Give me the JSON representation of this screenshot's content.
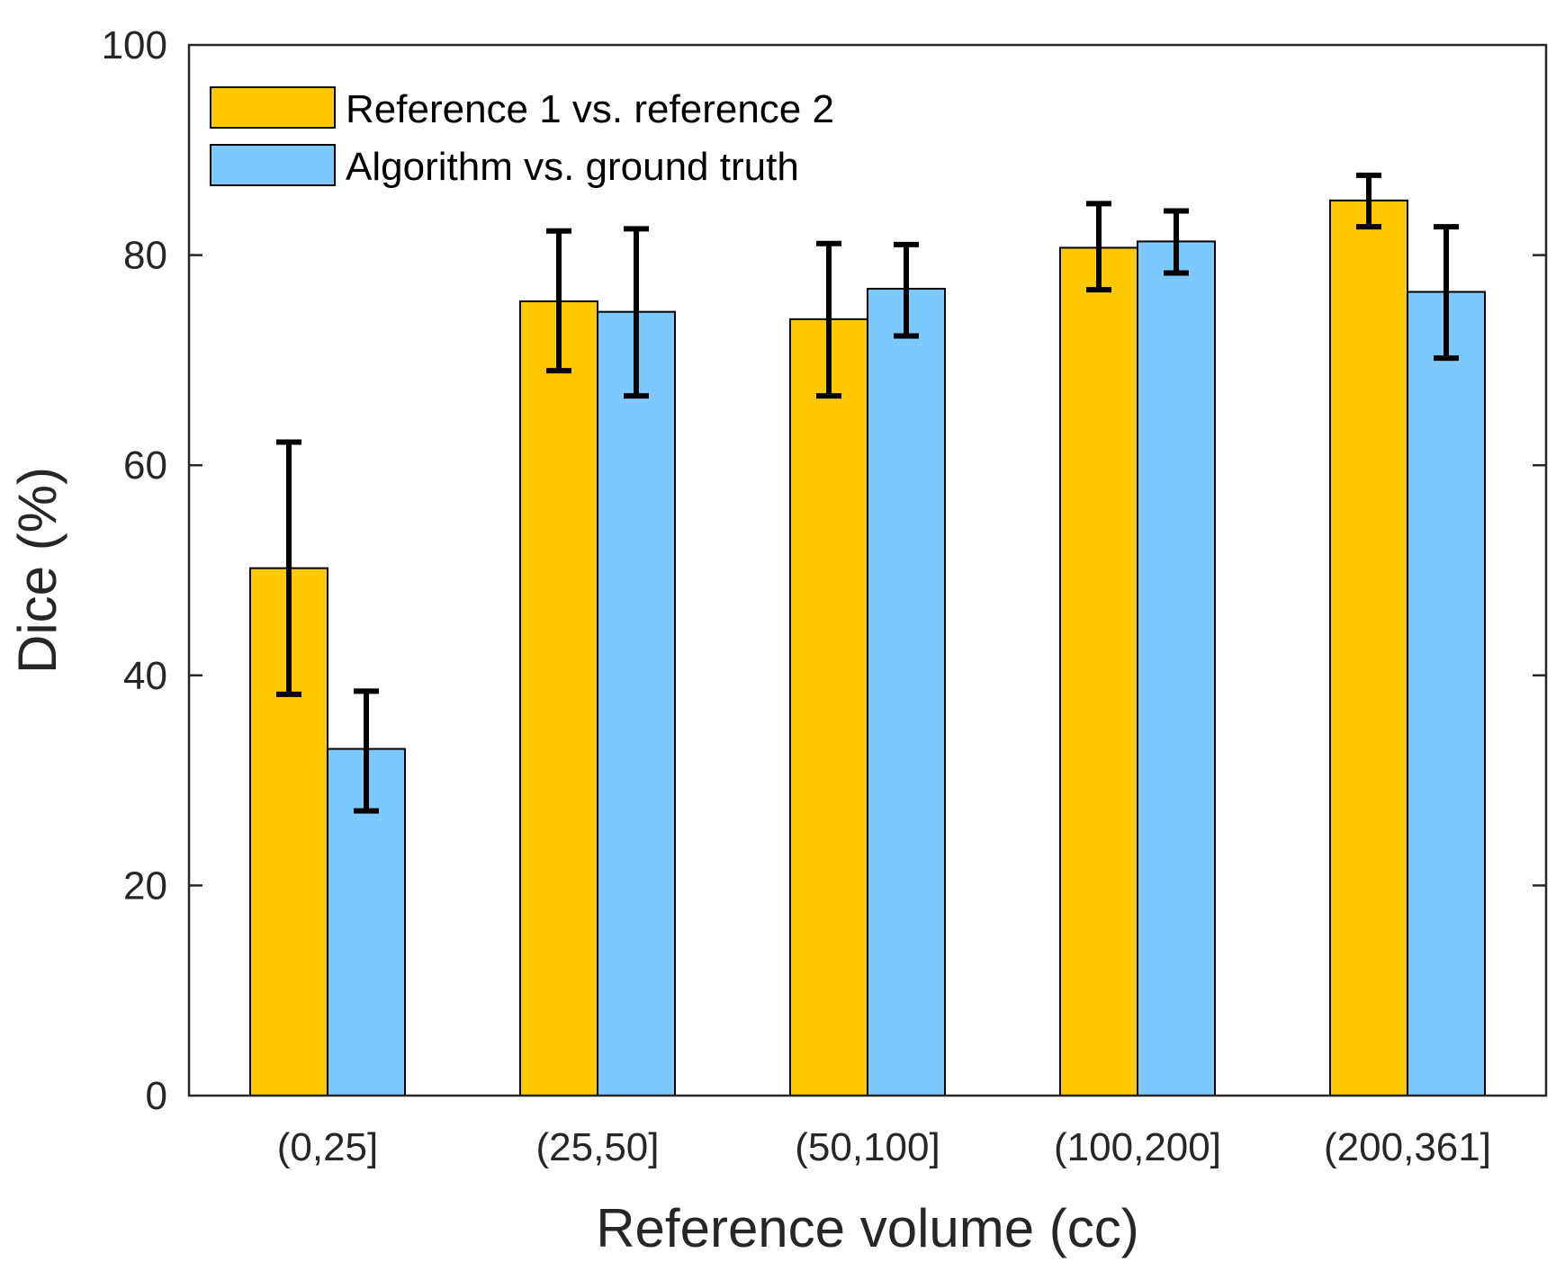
{
  "chart_data": {
    "type": "bar",
    "title": "",
    "xlabel": "Reference volume (cc)",
    "ylabel": "Dice (%)",
    "ylim": [
      0,
      100
    ],
    "yticks": [
      0,
      20,
      40,
      60,
      80,
      100
    ],
    "grid": false,
    "legend_position": "top-left",
    "categories": [
      "(0,25]",
      "(25,50]",
      "(50,100]",
      "(100,200]",
      "(200,361]"
    ],
    "series": [
      {
        "name": "Reference 1 vs. reference 2",
        "color": "#FFC800",
        "values": [
          50.2,
          75.6,
          73.9,
          80.7,
          85.2
        ],
        "err_low": [
          38.2,
          69.0,
          66.6,
          76.7,
          82.7
        ],
        "err_high": [
          62.2,
          82.3,
          81.1,
          84.9,
          87.6
        ]
      },
      {
        "name": "Algorithm vs. ground truth",
        "color": "#7DC9FF",
        "values": [
          33.0,
          74.6,
          76.8,
          81.3,
          76.5
        ],
        "err_low": [
          27.1,
          66.6,
          72.3,
          78.3,
          70.2
        ],
        "err_high": [
          38.5,
          82.5,
          81.0,
          84.2,
          82.7
        ]
      }
    ]
  }
}
